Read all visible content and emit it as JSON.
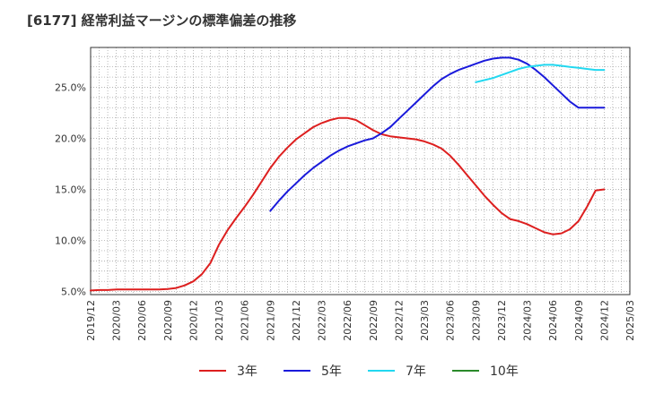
{
  "chart_data": {
    "type": "line",
    "title": "[6177]  経常利益マージンの標準偏差の推移",
    "xlabel": "",
    "ylabel": "",
    "ylim": [
      4.7,
      28.9
    ],
    "yticks": [
      5,
      10,
      15,
      20,
      25
    ],
    "ytick_labels": [
      "5.0%",
      "10.0%",
      "15.0%",
      "20.0%",
      "25.0%"
    ],
    "xticks": [
      "2019/12",
      "2020/03",
      "2020/06",
      "2020/09",
      "2020/12",
      "2021/03",
      "2021/06",
      "2021/09",
      "2021/12",
      "2022/03",
      "2022/06",
      "2022/09",
      "2022/12",
      "2023/03",
      "2023/06",
      "2023/09",
      "2023/12",
      "2024/03",
      "2024/06",
      "2024/09",
      "2024/12",
      "2025/03"
    ],
    "grid": true,
    "legend_position": "bottom",
    "series": [
      {
        "name": "3年",
        "color": "#dd1f1f",
        "x": [
          "2019/12",
          "2020/01",
          "2020/02",
          "2020/03",
          "2020/04",
          "2020/05",
          "2020/06",
          "2020/07",
          "2020/08",
          "2020/09",
          "2020/10",
          "2020/11",
          "2020/12",
          "2021/01",
          "2021/02",
          "2021/03",
          "2021/04",
          "2021/05",
          "2021/06",
          "2021/07",
          "2021/08",
          "2021/09",
          "2021/10",
          "2021/11",
          "2021/12",
          "2022/01",
          "2022/02",
          "2022/03",
          "2022/04",
          "2022/05",
          "2022/06",
          "2022/07",
          "2022/08",
          "2022/09",
          "2022/10",
          "2022/11",
          "2022/12",
          "2023/01",
          "2023/02",
          "2023/03",
          "2023/04",
          "2023/05",
          "2023/06",
          "2023/07",
          "2023/08",
          "2023/09",
          "2023/10",
          "2023/11",
          "2023/12",
          "2024/01",
          "2024/02",
          "2024/03",
          "2024/04",
          "2024/05",
          "2024/06",
          "2024/07",
          "2024/08",
          "2024/09",
          "2024/10",
          "2024/11",
          "2024/12"
        ],
        "values": [
          5.1,
          5.15,
          5.15,
          5.2,
          5.2,
          5.2,
          5.2,
          5.2,
          5.2,
          5.25,
          5.35,
          5.6,
          6.0,
          6.7,
          7.8,
          9.6,
          11.0,
          12.2,
          13.3,
          14.5,
          15.8,
          17.1,
          18.2,
          19.1,
          19.9,
          20.5,
          21.1,
          21.5,
          21.8,
          22.0,
          22.0,
          21.8,
          21.3,
          20.8,
          20.4,
          20.2,
          20.1,
          20.0,
          19.9,
          19.7,
          19.4,
          19.0,
          18.3,
          17.4,
          16.4,
          15.4,
          14.4,
          13.5,
          12.7,
          12.1,
          11.9,
          11.6,
          11.2,
          10.8,
          10.6,
          10.7,
          11.1,
          11.9,
          13.3,
          14.9,
          15.0
        ]
      },
      {
        "name": "5年",
        "color": "#1a1adb",
        "x": [
          "2021/09",
          "2021/10",
          "2021/11",
          "2021/12",
          "2022/01",
          "2022/02",
          "2022/03",
          "2022/04",
          "2022/05",
          "2022/06",
          "2022/07",
          "2022/08",
          "2022/09",
          "2022/10",
          "2022/11",
          "2022/12",
          "2023/01",
          "2023/02",
          "2023/03",
          "2023/04",
          "2023/05",
          "2023/06",
          "2023/07",
          "2023/08",
          "2023/09",
          "2023/10",
          "2023/11",
          "2023/12",
          "2024/01",
          "2024/02",
          "2024/03",
          "2024/04",
          "2024/05",
          "2024/06",
          "2024/07",
          "2024/08",
          "2024/09",
          "2024/10",
          "2024/11",
          "2024/12"
        ],
        "values": [
          12.9,
          13.9,
          14.8,
          15.6,
          16.4,
          17.1,
          17.7,
          18.3,
          18.8,
          19.2,
          19.5,
          19.8,
          20.0,
          20.5,
          21.1,
          21.9,
          22.7,
          23.5,
          24.3,
          25.1,
          25.8,
          26.3,
          26.7,
          27.0,
          27.3,
          27.6,
          27.8,
          27.9,
          27.9,
          27.7,
          27.3,
          26.7,
          26.0,
          25.2,
          24.4,
          23.6,
          23.0,
          23.0,
          23.0,
          23.0
        ]
      },
      {
        "name": "7年",
        "color": "#22d8f0",
        "x": [
          "2023/09",
          "2023/10",
          "2023/11",
          "2023/12",
          "2024/01",
          "2024/02",
          "2024/03",
          "2024/04",
          "2024/05",
          "2024/06",
          "2024/07",
          "2024/08",
          "2024/09",
          "2024/10",
          "2024/11",
          "2024/12"
        ],
        "values": [
          25.5,
          25.7,
          25.9,
          26.2,
          26.5,
          26.8,
          27.0,
          27.1,
          27.2,
          27.2,
          27.1,
          27.0,
          26.9,
          26.8,
          26.7,
          26.7
        ]
      },
      {
        "name": "10年",
        "color": "#2a8a2a",
        "x": [],
        "values": []
      }
    ]
  }
}
